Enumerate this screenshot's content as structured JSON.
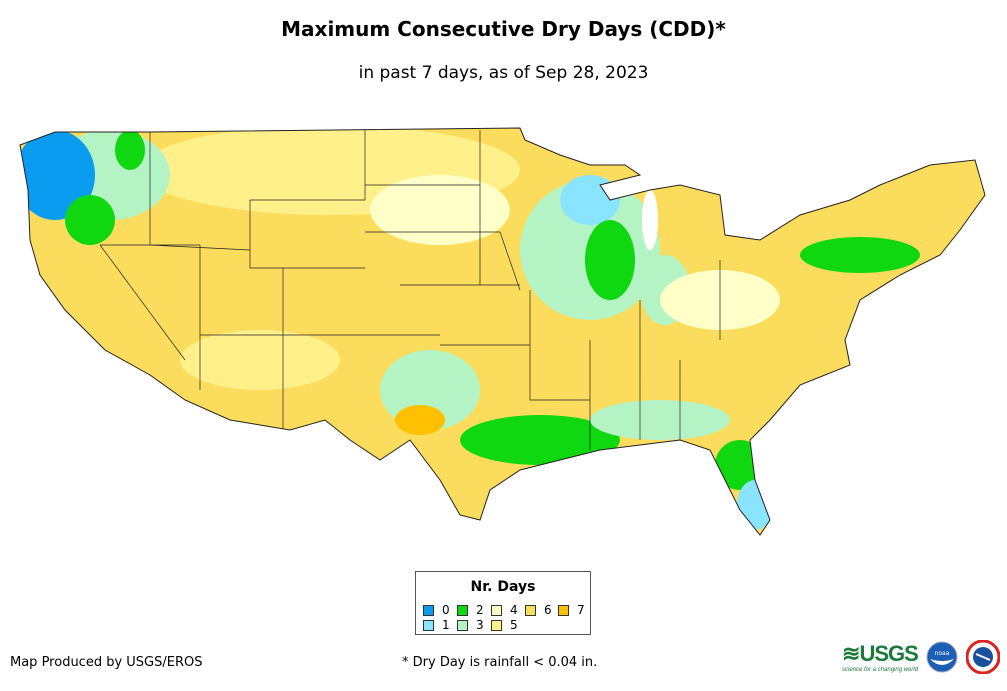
{
  "title": "Maximum Consecutive Dry Days (CDD)*",
  "subtitle": "in past 7 days, as of Sep 28, 2023",
  "legend": {
    "title": "Nr. Days",
    "items": [
      {
        "label": "0",
        "color": "#0a9cf0"
      },
      {
        "label": "1",
        "color": "#88e4ff"
      },
      {
        "label": "2",
        "color": "#10d810"
      },
      {
        "label": "3",
        "color": "#b4f4c4"
      },
      {
        "label": "4",
        "color": "#ffffc8"
      },
      {
        "label": "5",
        "color": "#fff08a"
      },
      {
        "label": "6",
        "color": "#fcdc5c"
      },
      {
        "label": "7",
        "color": "#ffc000"
      }
    ]
  },
  "producer": "Map Produced by USGS/EROS",
  "footnote": "* Dry Day is rainfall < 0.04 in.",
  "logos": {
    "usgs": "USGS",
    "usgs_tagline": "science for a changing world",
    "noaa": "NOAA",
    "nws": "NATIONAL WEATHER SERVICE"
  }
}
